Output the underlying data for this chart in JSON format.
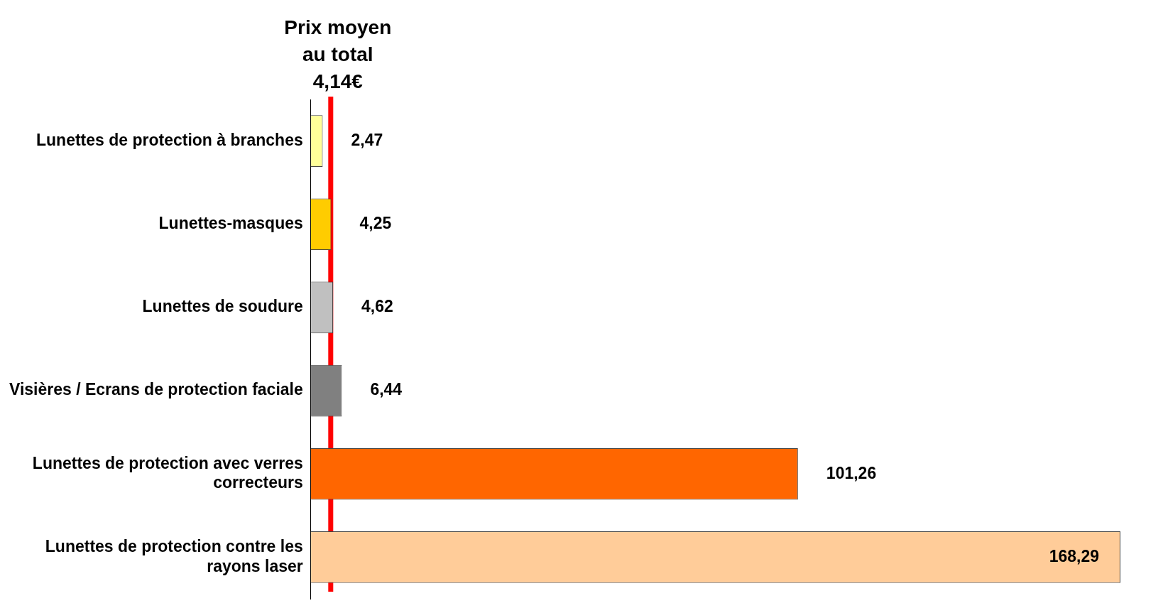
{
  "chart_data": {
    "type": "bar",
    "orientation": "horizontal",
    "categories": [
      "Lunettes de protection à branches",
      "Lunettes-masques",
      "Lunettes de soudure",
      "Visières / Ecrans de protection faciale",
      "Lunettes de protection avec verres correcteurs",
      "Lunettes de protection contre les rayons laser"
    ],
    "values": [
      2.47,
      4.25,
      4.62,
      6.44,
      101.26,
      168.29
    ],
    "value_labels": [
      "2,47",
      "4,25",
      "4,62",
      "6,44",
      "101,26",
      "168,29"
    ],
    "colors": [
      "#ffff99",
      "#ffcc00",
      "#c0c0c0",
      "#808080",
      "#ff6600",
      "#ffcc99"
    ],
    "ref_lines": [
      {
        "axis": "x",
        "value": 4.14,
        "label": "Prix moyen au total 4,14€",
        "color": "#ff0000"
      }
    ],
    "grid": false,
    "legend": false,
    "tick_labels": "y"
  }
}
